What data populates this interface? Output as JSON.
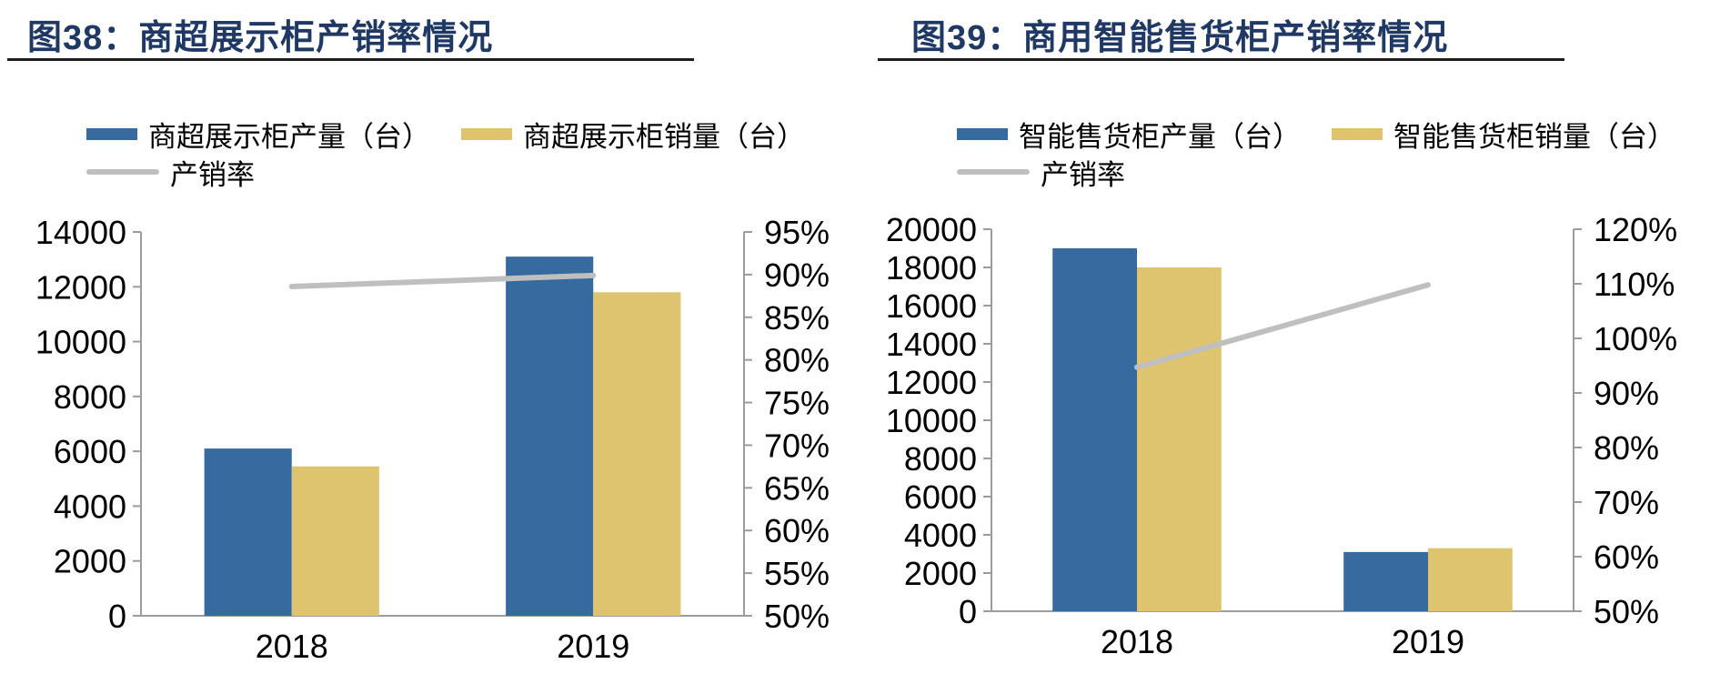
{
  "colors": {
    "bar_blue": "#376A9E",
    "bar_yellow": "#DEC46E",
    "line_gray": "#BFBFBF",
    "title_navy": "#1F3864",
    "axis_gray": "#9C9C9C",
    "tick_text": "#000000"
  },
  "chart_data": [
    {
      "type": "bar",
      "title": "图38：商超展示柜产销率情况",
      "categories": [
        "2018",
        "2019"
      ],
      "series": [
        {
          "name": "商超展示柜产量（台）",
          "kind": "bar",
          "axis": "left",
          "color_key": "bar_blue",
          "values": [
            6100,
            13100
          ]
        },
        {
          "name": "商超展示柜销量（台）",
          "kind": "bar",
          "axis": "left",
          "color_key": "bar_yellow",
          "values": [
            5450,
            11800
          ]
        },
        {
          "name": "产销率",
          "kind": "line",
          "axis": "right",
          "color_key": "line_gray",
          "values": [
            88.6,
            89.9
          ]
        }
      ],
      "left_axis": {
        "min": 0,
        "max": 14000,
        "step": 2000,
        "ticks": [
          "0",
          "2000",
          "4000",
          "6000",
          "8000",
          "10000",
          "12000",
          "14000"
        ]
      },
      "right_axis": {
        "min": 50,
        "max": 95,
        "step": 5,
        "format": "percent",
        "ticks": [
          "50%",
          "55%",
          "60%",
          "65%",
          "70%",
          "75%",
          "80%",
          "85%",
          "90%",
          "95%"
        ]
      },
      "grid": "off",
      "legend_position": "top-left"
    },
    {
      "type": "bar",
      "title": "图39：商用智能售货柜产销率情况",
      "categories": [
        "2018",
        "2019"
      ],
      "series": [
        {
          "name": "智能售货柜产量（台）",
          "kind": "bar",
          "axis": "left",
          "color_key": "bar_blue",
          "values": [
            19000,
            3100
          ]
        },
        {
          "name": "智能售货柜销量（台）",
          "kind": "bar",
          "axis": "left",
          "color_key": "bar_yellow",
          "values": [
            18000,
            3300
          ]
        },
        {
          "name": "产销率",
          "kind": "line",
          "axis": "right",
          "color_key": "line_gray",
          "values": [
            94.7,
            109.8
          ]
        }
      ],
      "left_axis": {
        "min": 0,
        "max": 20000,
        "step": 2000,
        "ticks": [
          "0",
          "2000",
          "4000",
          "6000",
          "8000",
          "10000",
          "12000",
          "14000",
          "16000",
          "18000",
          "20000"
        ]
      },
      "right_axis": {
        "min": 50,
        "max": 120,
        "step": 10,
        "format": "percent",
        "ticks": [
          "50%",
          "60%",
          "70%",
          "80%",
          "90%",
          "100%",
          "110%",
          "120%"
        ]
      },
      "grid": "off",
      "legend_position": "top-left"
    }
  ]
}
